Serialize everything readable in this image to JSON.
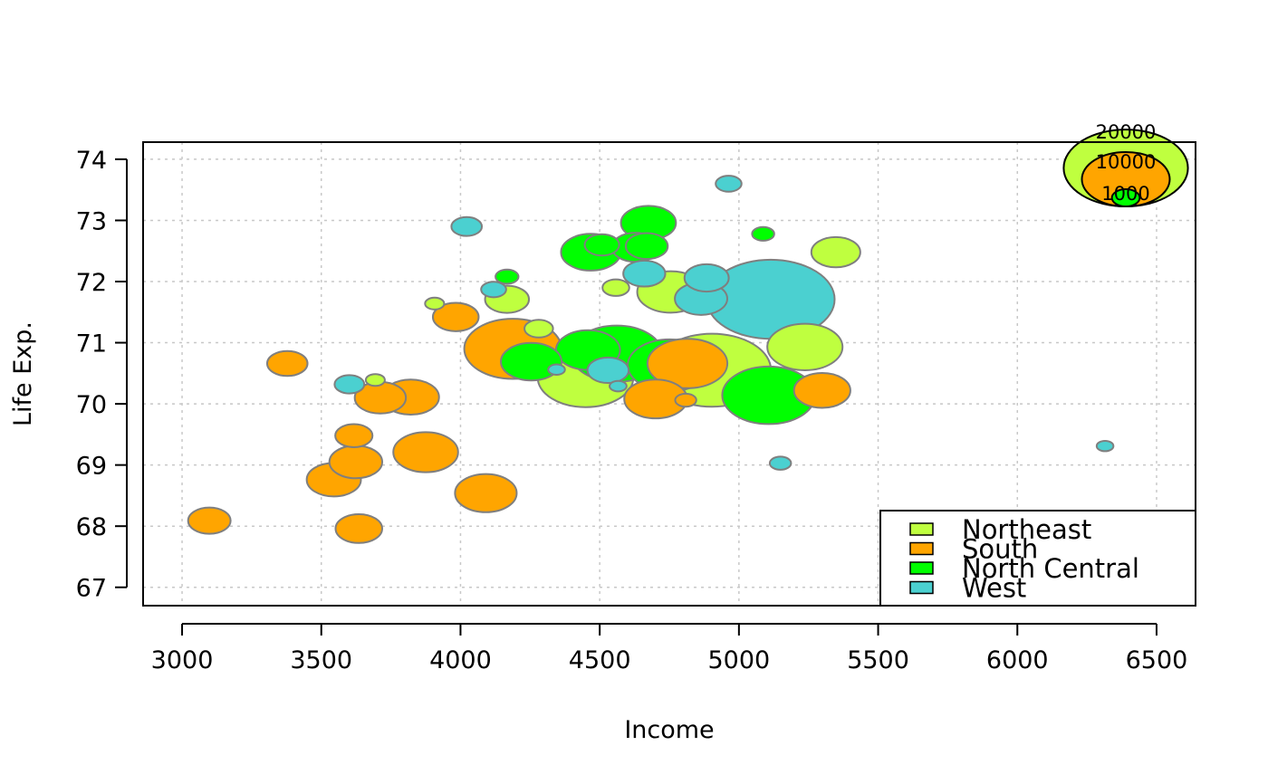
{
  "chart_data": {
    "type": "scatter",
    "subtype": "bubble",
    "xlabel": "Income",
    "ylabel": "Life Exp.",
    "xlim": [
      2860,
      6640
    ],
    "ylim": [
      66.7,
      74.28
    ],
    "xticks": [
      3000,
      3500,
      4000,
      4500,
      5000,
      5500,
      6000,
      6500
    ],
    "yticks": [
      67,
      68,
      69,
      70,
      71,
      72,
      73,
      74
    ],
    "grid": true,
    "bubble_size_variable_values_note_free": true,
    "legend": {
      "position": "bottom-right",
      "entries": [
        {
          "label": "Northeast",
          "color": "#BFFF3F"
        },
        {
          "label": "South",
          "color": "#FFA500"
        },
        {
          "label": "North Central",
          "color": "#00FF00"
        },
        {
          "label": "West",
          "color": "#4BD0D0"
        }
      ]
    },
    "size_key": {
      "position": "top-right",
      "labels": [
        "1000",
        "10000",
        "20000"
      ],
      "values": [
        1000,
        10000,
        20000
      ]
    },
    "series": [
      {
        "region": "Northeast",
        "color": "#BFFF3F",
        "points": [
          {
            "x": 5348,
            "y": 72.48,
            "size": 3100
          },
          {
            "x": 4281,
            "y": 71.23,
            "size": 1058
          },
          {
            "x": 4755,
            "y": 71.83,
            "size": 5814
          },
          {
            "x": 4167,
            "y": 71.71,
            "size": 2500
          },
          {
            "x": 5237,
            "y": 70.93,
            "size": 7333
          },
          {
            "x": 4903,
            "y": 70.55,
            "size": 18076
          },
          {
            "x": 4449,
            "y": 70.43,
            "size": 11860
          },
          {
            "x": 4558,
            "y": 71.9,
            "size": 931
          },
          {
            "x": 3694,
            "y": 70.39,
            "size": 472
          },
          {
            "x": 3907,
            "y": 71.64,
            "size": 472
          }
        ]
      },
      {
        "region": "South",
        "color": "#FFA500",
        "points": [
          {
            "x": 3624,
            "y": 69.05,
            "size": 3615
          },
          {
            "x": 3378,
            "y": 70.66,
            "size": 2110
          },
          {
            "x": 4809,
            "y": 70.06,
            "size": 579
          },
          {
            "x": 4815,
            "y": 70.66,
            "size": 8277
          },
          {
            "x": 4091,
            "y": 68.54,
            "size": 4931
          },
          {
            "x": 3712,
            "y": 70.1,
            "size": 3387
          },
          {
            "x": 3545,
            "y": 68.76,
            "size": 3806
          },
          {
            "x": 3098,
            "y": 68.09,
            "size": 2341
          },
          {
            "x": 3875,
            "y": 69.21,
            "size": 5441
          },
          {
            "x": 3983,
            "y": 71.42,
            "size": 2715
          },
          {
            "x": 3635,
            "y": 67.96,
            "size": 2816
          },
          {
            "x": 3821,
            "y": 70.11,
            "size": 4173
          },
          {
            "x": 4188,
            "y": 70.9,
            "size": 12237
          },
          {
            "x": 4701,
            "y": 70.08,
            "size": 5117
          },
          {
            "x": 5299,
            "y": 70.22,
            "size": 4122
          },
          {
            "x": 3617,
            "y": 69.48,
            "size": 1799
          }
        ]
      },
      {
        "region": "North Central",
        "color": "#00FF00",
        "points": [
          {
            "x": 5107,
            "y": 70.14,
            "size": 11197
          },
          {
            "x": 4458,
            "y": 70.88,
            "size": 5313
          },
          {
            "x": 4628,
            "y": 72.56,
            "size": 2861
          },
          {
            "x": 4669,
            "y": 72.58,
            "size": 2280
          },
          {
            "x": 4751,
            "y": 70.63,
            "size": 9111
          },
          {
            "x": 4675,
            "y": 72.96,
            "size": 3921
          },
          {
            "x": 4254,
            "y": 70.69,
            "size": 4767
          },
          {
            "x": 4508,
            "y": 72.6,
            "size": 1544
          },
          {
            "x": 5087,
            "y": 72.78,
            "size": 637
          },
          {
            "x": 4561,
            "y": 70.82,
            "size": 10735
          },
          {
            "x": 4167,
            "y": 72.08,
            "size": 681
          },
          {
            "x": 4468,
            "y": 72.48,
            "size": 4589
          }
        ]
      },
      {
        "region": "West",
        "color": "#4BD0D0",
        "points": [
          {
            "x": 6315,
            "y": 69.31,
            "size": 365
          },
          {
            "x": 4530,
            "y": 70.55,
            "size": 2212
          },
          {
            "x": 5114,
            "y": 71.71,
            "size": 21198
          },
          {
            "x": 4884,
            "y": 72.06,
            "size": 2541
          },
          {
            "x": 4963,
            "y": 73.6,
            "size": 868
          },
          {
            "x": 4119,
            "y": 71.87,
            "size": 813
          },
          {
            "x": 5149,
            "y": 69.03,
            "size": 590
          },
          {
            "x": 3601,
            "y": 70.32,
            "size": 1144
          },
          {
            "x": 4660,
            "y": 72.13,
            "size": 2284
          },
          {
            "x": 4022,
            "y": 72.9,
            "size": 1203
          },
          {
            "x": 4864,
            "y": 71.72,
            "size": 3559
          },
          {
            "x": 4566,
            "y": 70.29,
            "size": 376
          },
          {
            "x": 4345,
            "y": 70.56,
            "size": 365
          }
        ]
      }
    ]
  }
}
